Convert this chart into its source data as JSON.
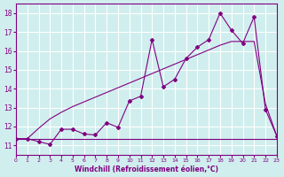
{
  "xlabel": "Windchill (Refroidissement éolien,°C)",
  "bg_color": "#d0eeee",
  "grid_color": "#ffffff",
  "line_color": "#800080",
  "line_color2": "#993399",
  "xlim": [
    0,
    23
  ],
  "ylim": [
    10.5,
    18.5
  ],
  "xticks": [
    0,
    1,
    2,
    3,
    4,
    5,
    6,
    7,
    8,
    9,
    10,
    11,
    12,
    13,
    14,
    15,
    16,
    17,
    18,
    19,
    20,
    21,
    22,
    23
  ],
  "yticks": [
    11,
    12,
    13,
    14,
    15,
    16,
    17,
    18
  ],
  "series1_x": [
    0,
    1,
    2,
    3,
    4,
    5,
    6,
    7,
    8,
    9,
    10,
    11,
    12,
    13,
    14,
    15,
    16,
    17,
    18,
    19,
    20,
    21,
    22,
    23
  ],
  "series1_y": [
    11.35,
    11.35,
    11.2,
    11.05,
    11.85,
    11.85,
    11.6,
    11.55,
    12.2,
    11.95,
    13.35,
    13.6,
    16.6,
    14.1,
    14.5,
    15.6,
    16.2,
    16.6,
    18.0,
    17.1,
    16.4,
    17.8,
    12.9,
    11.5
  ],
  "series2_x": [
    0,
    1,
    2,
    3,
    4,
    5,
    6,
    7,
    8,
    9,
    10,
    11,
    12,
    13,
    14,
    15,
    16,
    17,
    18,
    19,
    20,
    21,
    22,
    23
  ],
  "series2_y": [
    11.35,
    11.35,
    11.35,
    11.35,
    11.35,
    11.35,
    11.35,
    11.35,
    11.35,
    11.35,
    11.35,
    11.35,
    11.35,
    11.35,
    11.35,
    11.35,
    11.35,
    11.35,
    11.35,
    11.35,
    11.35,
    11.35,
    11.35,
    11.35
  ],
  "series3_x": [
    0,
    1,
    2,
    3,
    4,
    5,
    6,
    7,
    8,
    9,
    10,
    11,
    12,
    13,
    14,
    15,
    16,
    17,
    18,
    19,
    20,
    21,
    22,
    23
  ],
  "series3_y": [
    11.35,
    11.35,
    11.9,
    12.4,
    12.75,
    13.05,
    13.3,
    13.55,
    13.8,
    14.05,
    14.3,
    14.55,
    14.8,
    15.05,
    15.3,
    15.55,
    15.8,
    16.05,
    16.3,
    16.5,
    16.5,
    16.5,
    13.2,
    11.5
  ]
}
